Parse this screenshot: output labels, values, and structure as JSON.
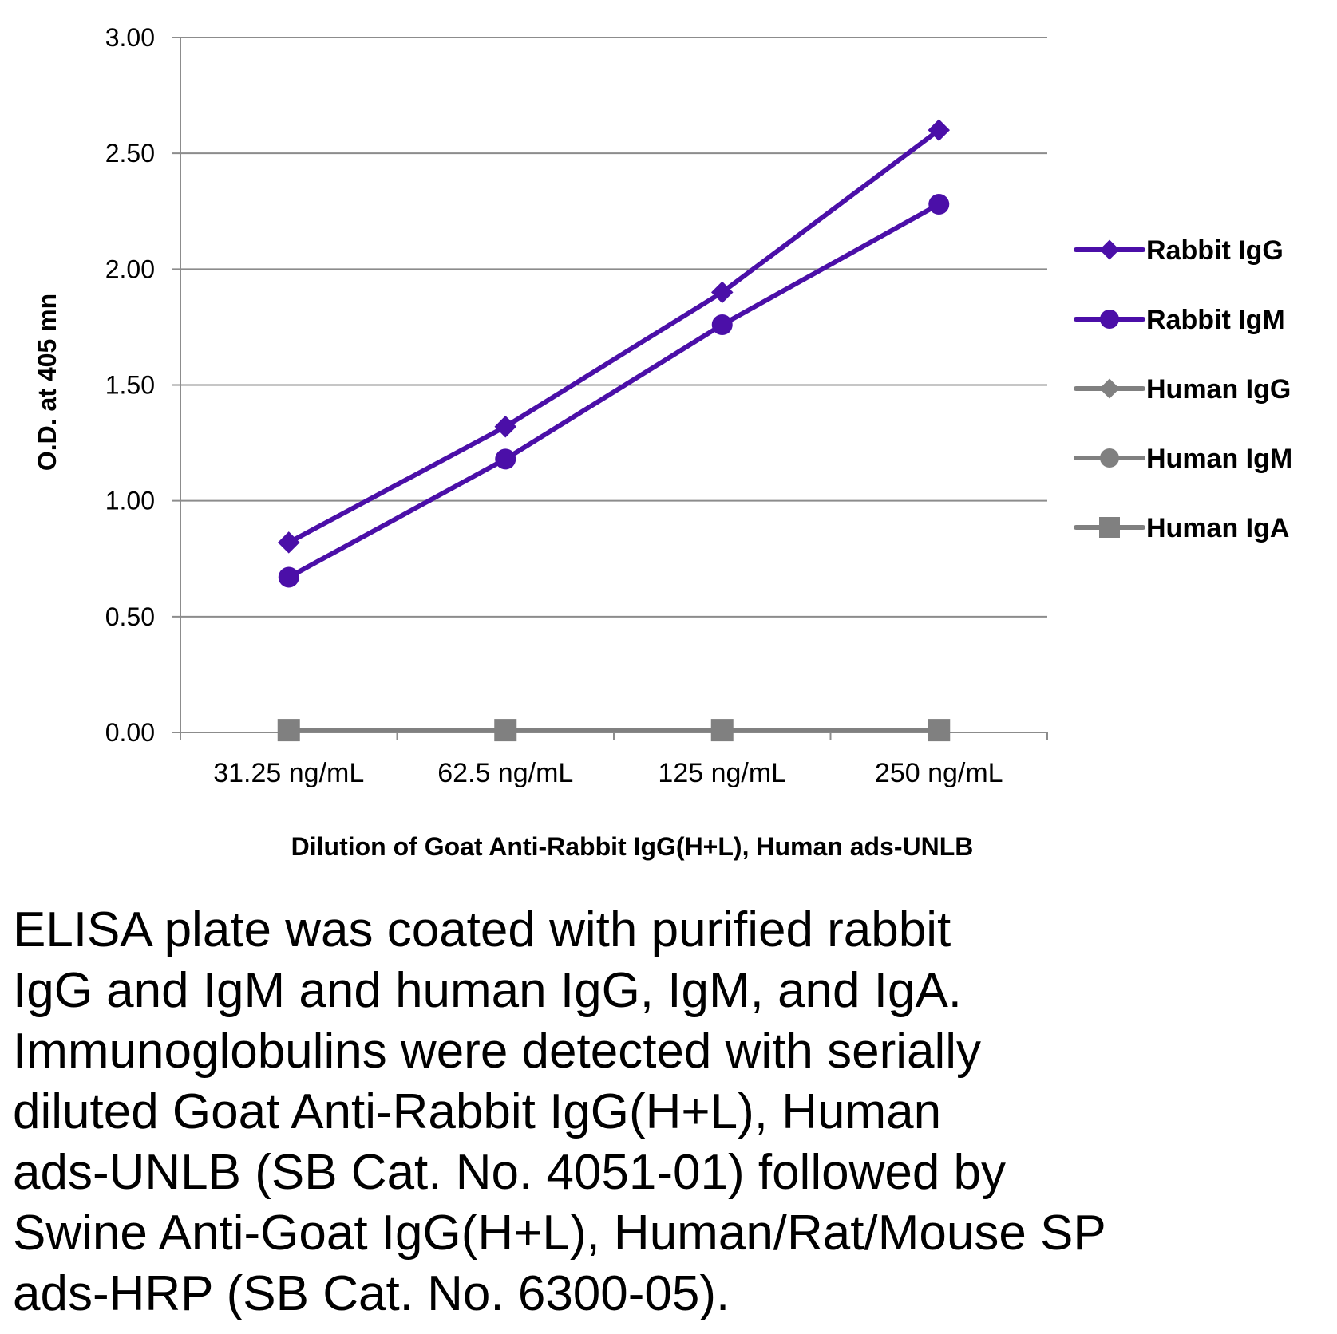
{
  "chart_data": {
    "type": "line",
    "title": "",
    "xlabel": "Dilution of Goat Anti-Rabbit IgG(H+L), Human ads-UNLB",
    "ylabel": "O.D. at 405 mn",
    "ylim": [
      0,
      3
    ],
    "yticks": [
      "0.00",
      "0.50",
      "1.00",
      "1.50",
      "2.00",
      "2.50",
      "3.00"
    ],
    "grid": true,
    "legend_position": "right",
    "categories": [
      "31.25 ng/mL",
      "62.5 ng/mL",
      "125 ng/mL",
      "250 ng/mL"
    ],
    "series": [
      {
        "name": "Rabbit IgG",
        "marker": "diamond",
        "color": "#4b0fa8",
        "values": [
          0.82,
          1.32,
          1.9,
          2.6
        ]
      },
      {
        "name": "Rabbit IgM",
        "marker": "circle",
        "color": "#4b0fa8",
        "values": [
          0.67,
          1.18,
          1.76,
          2.28
        ]
      },
      {
        "name": "Human IgG",
        "marker": "diamond",
        "color": "#808080",
        "values": [
          0.01,
          0.01,
          0.01,
          0.01
        ]
      },
      {
        "name": "Human IgM",
        "marker": "circle",
        "color": "#808080",
        "values": [
          0.01,
          0.01,
          0.01,
          0.01
        ]
      },
      {
        "name": "Human IgA",
        "marker": "square",
        "color": "#808080",
        "values": [
          0.01,
          0.01,
          0.01,
          0.01
        ]
      }
    ]
  },
  "caption": {
    "lines": [
      "ELISA plate was coated with purified rabbit",
      "IgG and IgM and human IgG, IgM, and IgA.",
      "Immunoglobulins were detected with serially",
      "diluted Goat Anti-Rabbit IgG(H+L), Human",
      "ads-UNLB (SB Cat. No. 4051-01) followed by",
      "Swine Anti-Goat IgG(H+L), Human/Rat/Mouse SP",
      "ads-HRP (SB Cat. No. 6300-05)."
    ]
  }
}
